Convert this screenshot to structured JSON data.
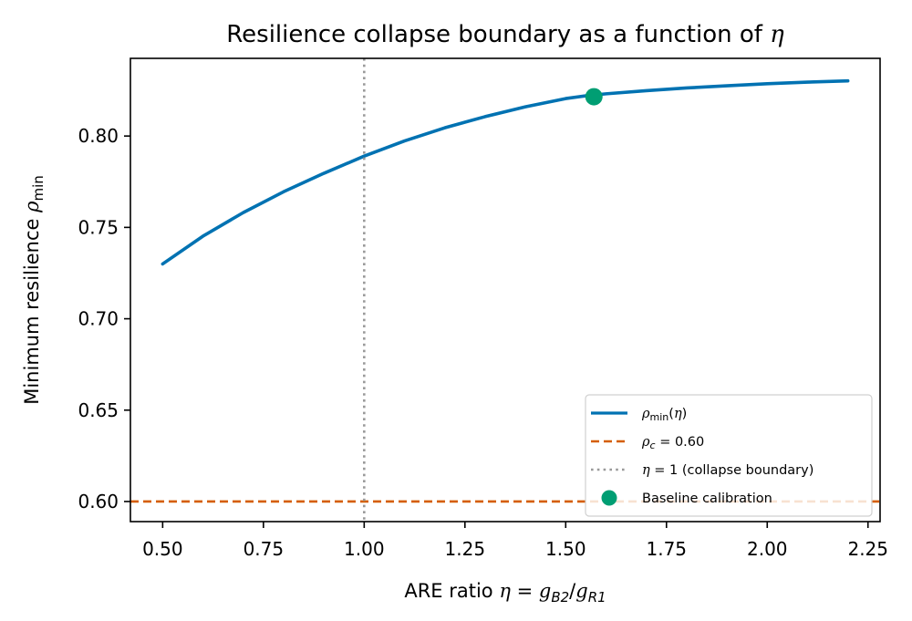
{
  "chart_data": {
    "type": "line",
    "title": "Resilience collapse boundary as a function of η",
    "xlabel": "ARE ratio η = gB2/gR1",
    "ylabel": "Minimum resilience ρmin",
    "xlim": [
      0.42,
      2.28
    ],
    "ylim": [
      0.589,
      0.8425
    ],
    "xticks": [
      0.5,
      0.75,
      1.0,
      1.25,
      1.5,
      1.75,
      2.0,
      2.25
    ],
    "xtick_labels": [
      "0.50",
      "0.75",
      "1.00",
      "1.25",
      "1.50",
      "1.75",
      "2.00",
      "2.25"
    ],
    "yticks": [
      0.6,
      0.65,
      0.7,
      0.75,
      0.8
    ],
    "ytick_labels": [
      "0.60",
      "0.65",
      "0.70",
      "0.75",
      "0.80"
    ],
    "grid": false,
    "legend_position": "bottom-right",
    "series": [
      {
        "name": "ρmin(η)",
        "kind": "line",
        "style": "solid",
        "color": "#0072B2",
        "x": [
          0.5,
          0.6,
          0.7,
          0.8,
          0.9,
          1.0,
          1.1,
          1.2,
          1.3,
          1.4,
          1.5,
          1.55,
          1.6,
          1.7,
          1.8,
          1.9,
          2.0,
          2.1,
          2.2
        ],
        "y": [
          0.73,
          0.7452,
          0.7581,
          0.7695,
          0.7796,
          0.789,
          0.7973,
          0.8045,
          0.8106,
          0.816,
          0.8205,
          0.822,
          0.8231,
          0.8248,
          0.8263,
          0.8275,
          0.8286,
          0.8295,
          0.8302
        ]
      },
      {
        "name": "ρc = 0.60",
        "kind": "hline",
        "style": "dashed",
        "color": "#D55E00",
        "y": 0.6
      },
      {
        "name": "η = 1 (collapse boundary)",
        "kind": "vline",
        "style": "dotted",
        "color": "#999999",
        "x": 1.0
      },
      {
        "name": "Baseline calibration",
        "kind": "point",
        "color": "#009E73",
        "x": 1.57,
        "y": 0.8215
      }
    ]
  }
}
